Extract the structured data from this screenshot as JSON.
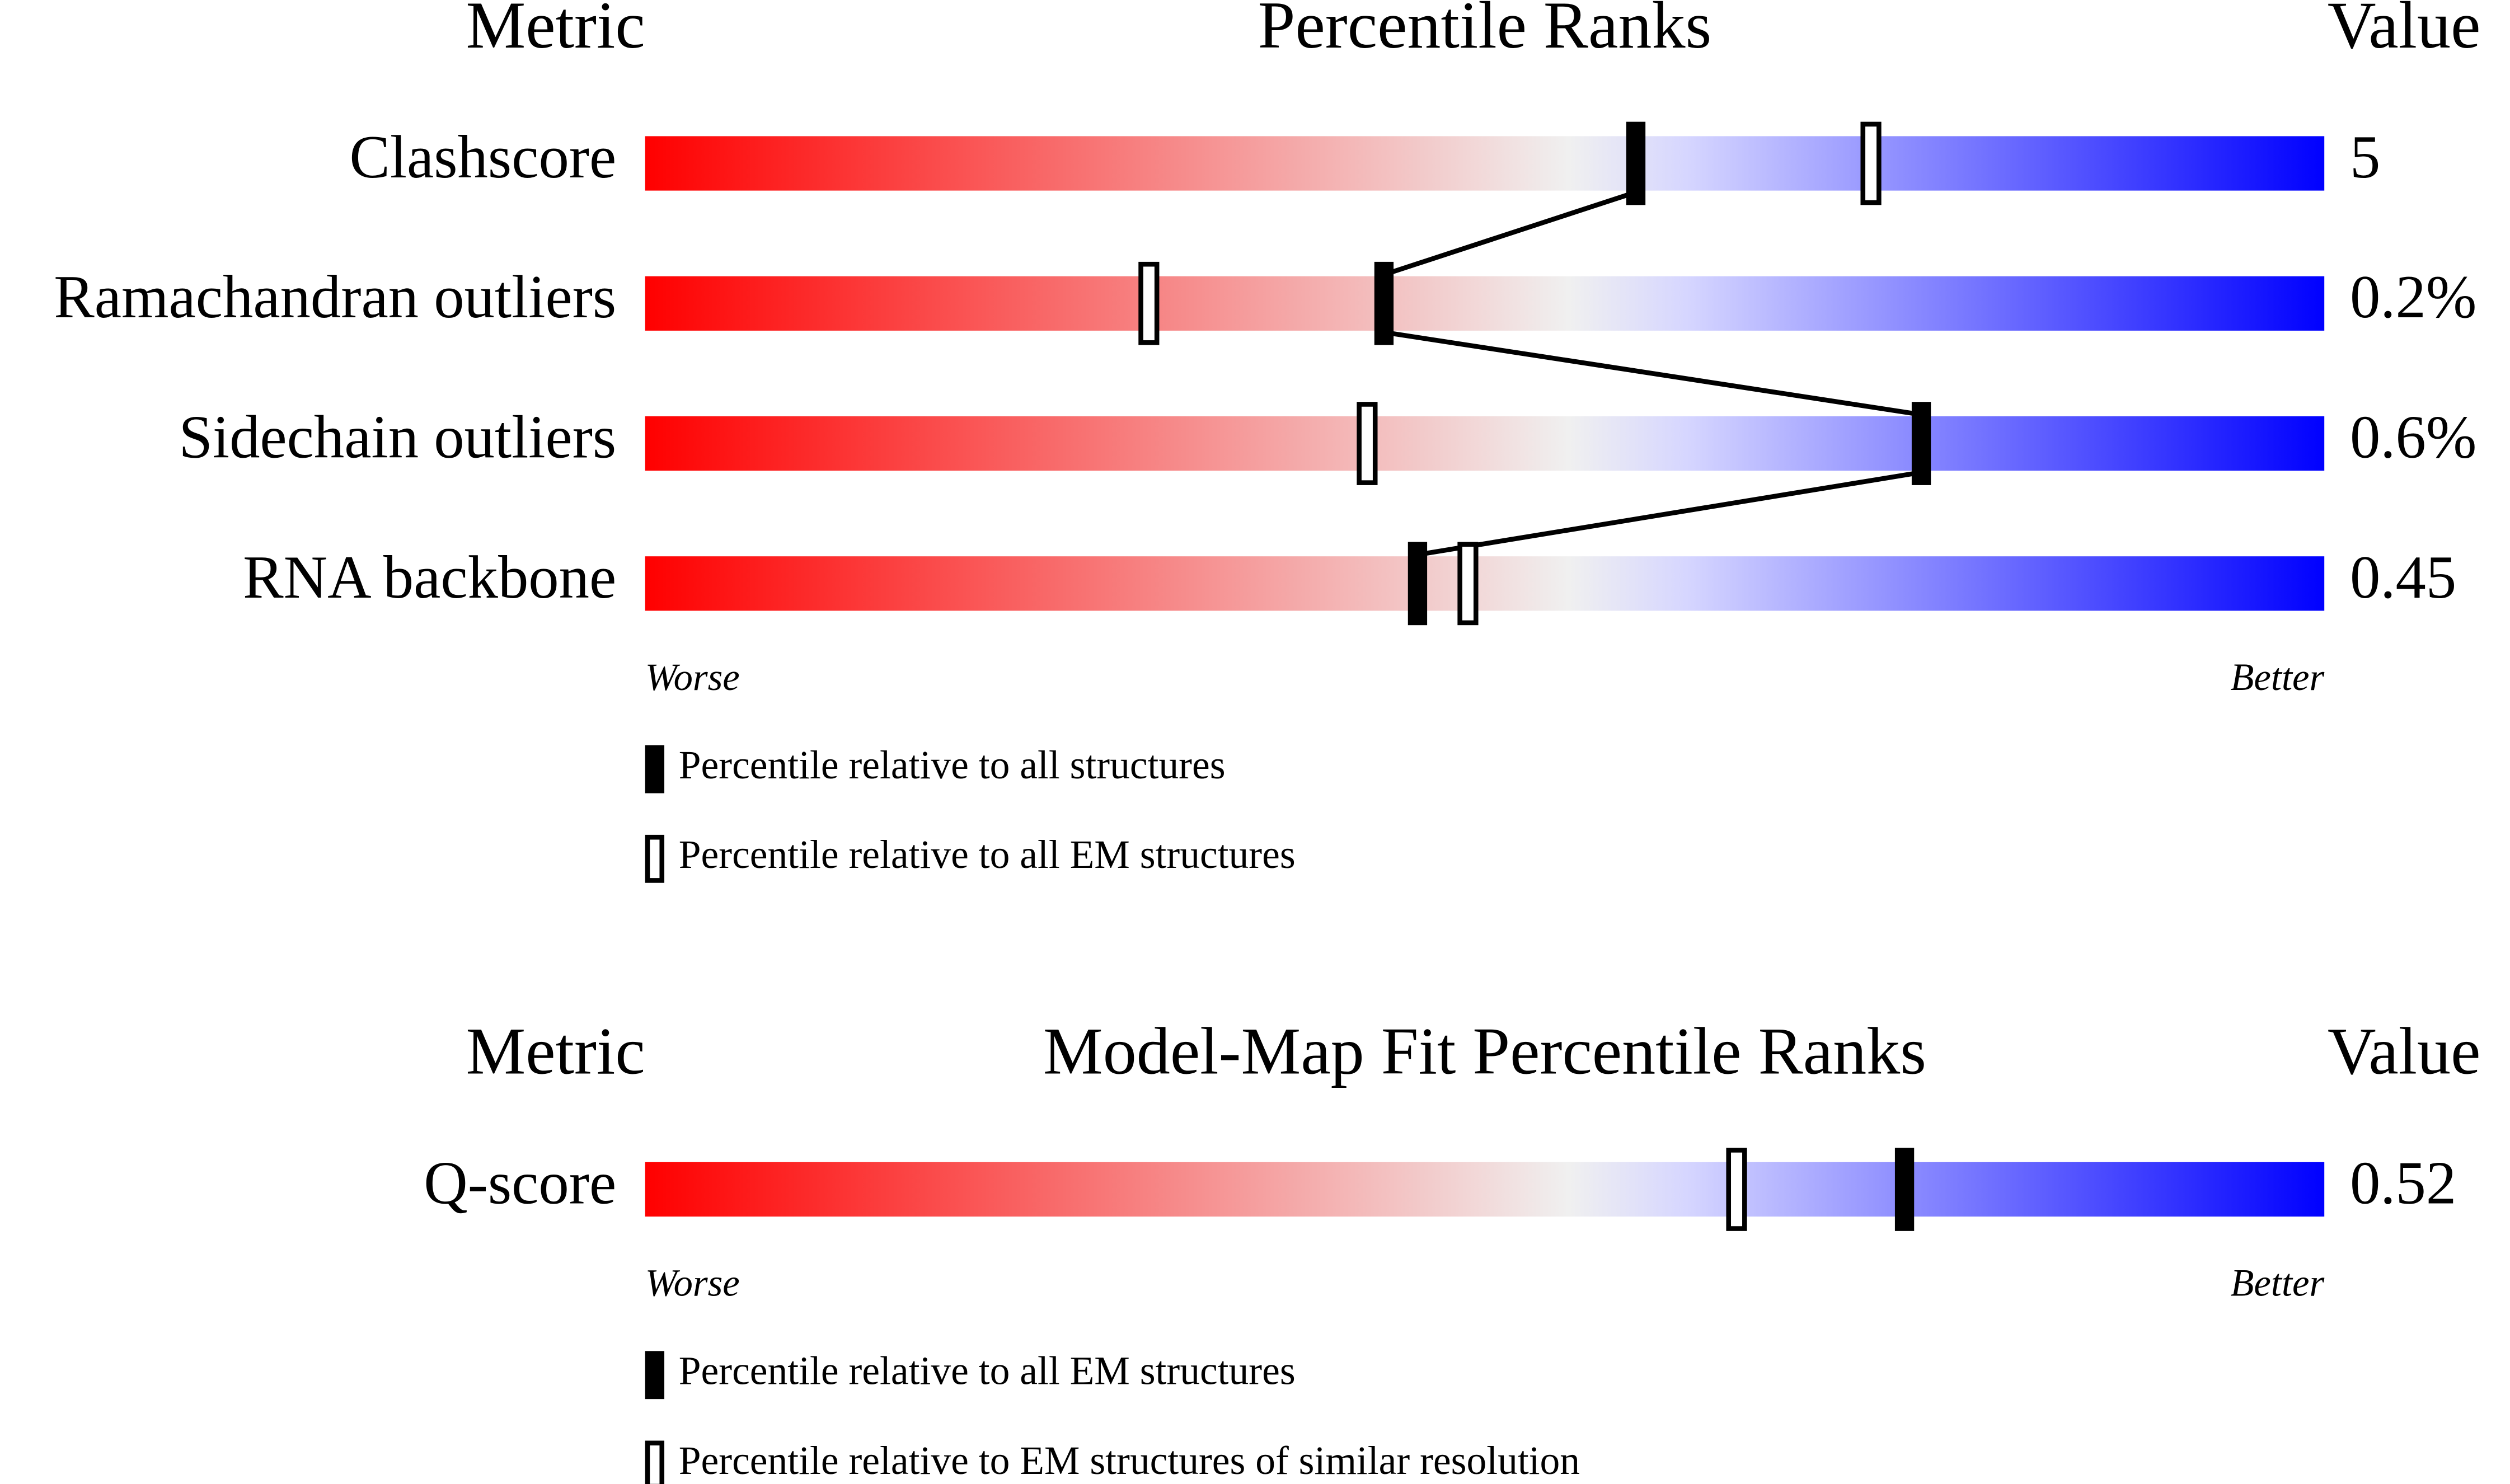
{
  "chart_data": [
    {
      "type": "slider",
      "metric_header": "Metric",
      "title": "Percentile Ranks",
      "value_header": "Value",
      "categories": [
        "Clashscore",
        "Ramachandran outliers",
        "Sidechain outliers",
        "RNA backbone"
      ],
      "metric_values": [
        "5",
        "0.2%",
        "0.6%",
        "0.45"
      ],
      "series": [
        {
          "name": "Percentile relative to all structures",
          "color": "#000000",
          "style": "filled",
          "values": [
            59,
            44,
            76,
            46
          ]
        },
        {
          "name": "Percentile relative to all EM structures",
          "color": "#000000",
          "style": "outline",
          "values": [
            73,
            30,
            43,
            49
          ]
        }
      ],
      "xlim": [
        0,
        100
      ],
      "low_label": "Worse",
      "high_label": "Better",
      "gradient": [
        "#ff0000",
        "#f0f0f0",
        "#d6d6ff",
        "#0000ff"
      ],
      "connect_series": 0
    },
    {
      "type": "slider",
      "metric_header": "Metric",
      "title": "Model-Map Fit Percentile Ranks",
      "value_header": "Value",
      "categories": [
        "Q-score"
      ],
      "metric_values": [
        "0.52"
      ],
      "series": [
        {
          "name": "Percentile relative to all EM structures",
          "color": "#000000",
          "style": "filled",
          "values": [
            75
          ]
        },
        {
          "name": "Percentile relative to EM structures of similar resolution",
          "color": "#000000",
          "style": "outline",
          "values": [
            65
          ]
        }
      ],
      "xlim": [
        0,
        100
      ],
      "low_label": "Worse",
      "high_label": "Better",
      "gradient": [
        "#ff0000",
        "#f0f0f0",
        "#d6d6ff",
        "#0000ff"
      ],
      "connect_series": 0
    }
  ]
}
